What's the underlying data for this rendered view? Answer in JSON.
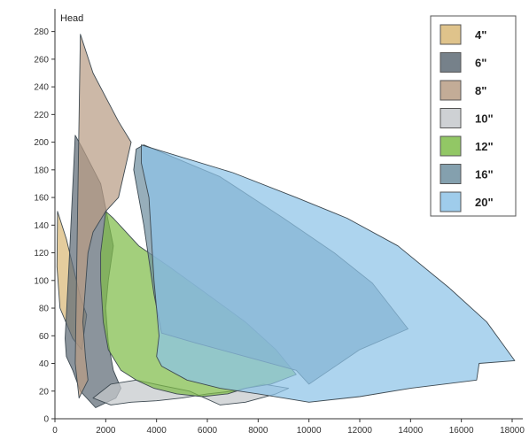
{
  "chart_data": {
    "type": "area",
    "title": "",
    "xlabel": "",
    "ylabel": "Head",
    "xlim": [
      0,
      18000
    ],
    "ylim": [
      0,
      290
    ],
    "x_ticks": [
      0,
      2000,
      4000,
      6000,
      8000,
      10000,
      12000,
      14000,
      16000,
      18000
    ],
    "y_ticks": [
      0,
      20,
      40,
      60,
      80,
      100,
      120,
      140,
      160,
      180,
      200,
      220,
      240,
      260,
      280
    ],
    "legend_position": "top-right",
    "grid": false,
    "series": [
      {
        "name": "4\"",
        "color": "#d9b877",
        "points": [
          [
            100,
            150
          ],
          [
            450,
            130
          ],
          [
            1000,
            88
          ],
          [
            1250,
            75
          ],
          [
            1050,
            50
          ],
          [
            700,
            58
          ],
          [
            200,
            80
          ],
          [
            80,
            110
          ]
        ]
      },
      {
        "name": "6\"",
        "color": "#5e6b76",
        "points": [
          [
            400,
            58
          ],
          [
            550,
            110
          ],
          [
            800,
            205
          ],
          [
            1100,
            195
          ],
          [
            1800,
            170
          ],
          [
            2300,
            125
          ],
          [
            2100,
            100
          ],
          [
            2000,
            80
          ],
          [
            2100,
            55
          ],
          [
            2300,
            35
          ],
          [
            2600,
            22
          ],
          [
            2400,
            15
          ],
          [
            1600,
            8
          ],
          [
            1000,
            20
          ],
          [
            700,
            35
          ],
          [
            450,
            45
          ]
        ]
      },
      {
        "name": "8\"",
        "color": "#b89d85",
        "points": [
          [
            950,
            15
          ],
          [
            800,
            40
          ],
          [
            1000,
            278
          ],
          [
            1500,
            250
          ],
          [
            2500,
            215
          ],
          [
            3000,
            200
          ],
          [
            2500,
            160
          ],
          [
            2000,
            150
          ],
          [
            1500,
            135
          ],
          [
            1300,
            120
          ],
          [
            1100,
            70
          ],
          [
            1200,
            45
          ],
          [
            1300,
            28
          ]
        ]
      },
      {
        "name": "10\"",
        "color": "#c5c9cc",
        "points": [
          [
            1500,
            15
          ],
          [
            2200,
            25
          ],
          [
            3200,
            28
          ],
          [
            4200,
            24
          ],
          [
            5300,
            20
          ],
          [
            6500,
            10
          ],
          [
            7500,
            12
          ],
          [
            8700,
            18
          ],
          [
            9200,
            22
          ],
          [
            8200,
            25
          ],
          [
            7000,
            20
          ],
          [
            6000,
            18
          ],
          [
            5000,
            15
          ],
          [
            4000,
            13
          ],
          [
            3000,
            12
          ],
          [
            2200,
            10
          ]
        ]
      },
      {
        "name": "12\"",
        "color": "#7fbd4a",
        "points": [
          [
            2000,
            150
          ],
          [
            2300,
            145
          ],
          [
            3300,
            125
          ],
          [
            4500,
            110
          ],
          [
            6000,
            90
          ],
          [
            7500,
            70
          ],
          [
            8700,
            50
          ],
          [
            9500,
            32
          ],
          [
            8500,
            25
          ],
          [
            7500,
            22
          ],
          [
            6800,
            18
          ],
          [
            5800,
            16
          ],
          [
            4800,
            18
          ],
          [
            3900,
            22
          ],
          [
            3200,
            28
          ],
          [
            2600,
            35
          ],
          [
            2100,
            50
          ],
          [
            1900,
            70
          ],
          [
            1800,
            100
          ],
          [
            1800,
            120
          ]
        ]
      },
      {
        "name": "16\"",
        "color": "#6f8fa0",
        "points": [
          [
            3200,
            195
          ],
          [
            3500,
            198
          ],
          [
            6500,
            175
          ],
          [
            9000,
            145
          ],
          [
            11000,
            120
          ],
          [
            12500,
            98
          ],
          [
            13900,
            65
          ],
          [
            12000,
            50
          ],
          [
            10000,
            25
          ],
          [
            9500,
            35
          ],
          [
            7500,
            45
          ],
          [
            5500,
            55
          ],
          [
            4200,
            62
          ],
          [
            3900,
            90
          ],
          [
            3500,
            140
          ],
          [
            3100,
            180
          ]
        ]
      },
      {
        "name": "20\"",
        "color": "#8ec3e8",
        "points": [
          [
            3400,
            198
          ],
          [
            7000,
            178
          ],
          [
            9500,
            160
          ],
          [
            11500,
            145
          ],
          [
            13500,
            125
          ],
          [
            15500,
            95
          ],
          [
            17000,
            70
          ],
          [
            18100,
            42
          ],
          [
            16700,
            40
          ],
          [
            16600,
            28
          ],
          [
            14000,
            22
          ],
          [
            12000,
            16
          ],
          [
            10000,
            12
          ],
          [
            9000,
            15
          ],
          [
            8000,
            18
          ],
          [
            6500,
            22
          ],
          [
            5200,
            28
          ],
          [
            4200,
            38
          ],
          [
            4000,
            45
          ],
          [
            4100,
            60
          ],
          [
            3900,
            100
          ],
          [
            3700,
            160
          ],
          [
            3400,
            185
          ]
        ]
      }
    ]
  }
}
